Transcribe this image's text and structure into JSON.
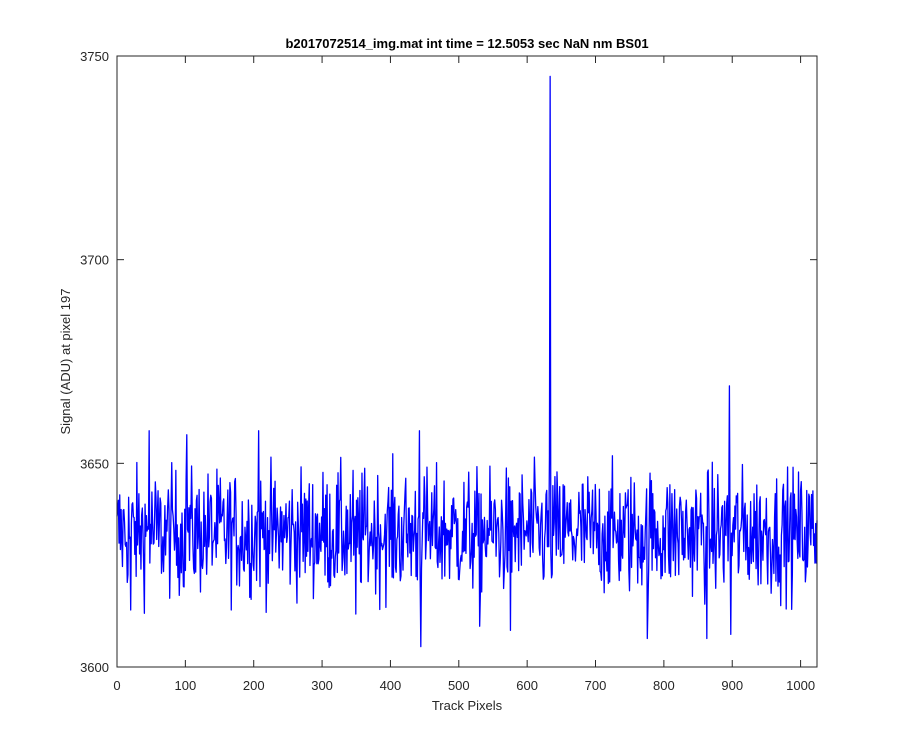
{
  "chart_data": {
    "type": "line",
    "title": "b2017072514_img.mat int time = 12.5053 sec  NaN nm BS01",
    "xlabel": "Track Pixels",
    "ylabel": "Signal (ADU) at pixel 197",
    "xlim": [
      0,
      1024
    ],
    "ylim": [
      3600,
      3750
    ],
    "xticks": [
      0,
      100,
      200,
      300,
      400,
      500,
      600,
      700,
      800,
      900,
      1000
    ],
    "yticks": [
      3600,
      3650,
      3700,
      3750
    ],
    "grid": false,
    "series": [
      {
        "color": "#0000ff",
        "noise": {
          "n": 1024,
          "mean": 3633,
          "amplitude": 7.5,
          "min": 3605,
          "max": 3658
        },
        "points": [
          {
            "x": 0,
            "y": 3637
          },
          {
            "x": 20,
            "y": 3614
          },
          {
            "x": 47,
            "y": 3658
          },
          {
            "x": 102,
            "y": 3657
          },
          {
            "x": 207,
            "y": 3658
          },
          {
            "x": 349,
            "y": 3613
          },
          {
            "x": 442,
            "y": 3658
          },
          {
            "x": 444,
            "y": 3605
          },
          {
            "x": 530,
            "y": 3610
          },
          {
            "x": 575,
            "y": 3609
          },
          {
            "x": 632,
            "y": 3652
          },
          {
            "x": 633,
            "y": 3745
          },
          {
            "x": 634,
            "y": 3628
          },
          {
            "x": 775,
            "y": 3607
          },
          {
            "x": 862,
            "y": 3607
          },
          {
            "x": 895,
            "y": 3669
          },
          {
            "x": 897,
            "y": 3608
          },
          {
            "x": 1024,
            "y": 3636
          }
        ]
      }
    ]
  }
}
